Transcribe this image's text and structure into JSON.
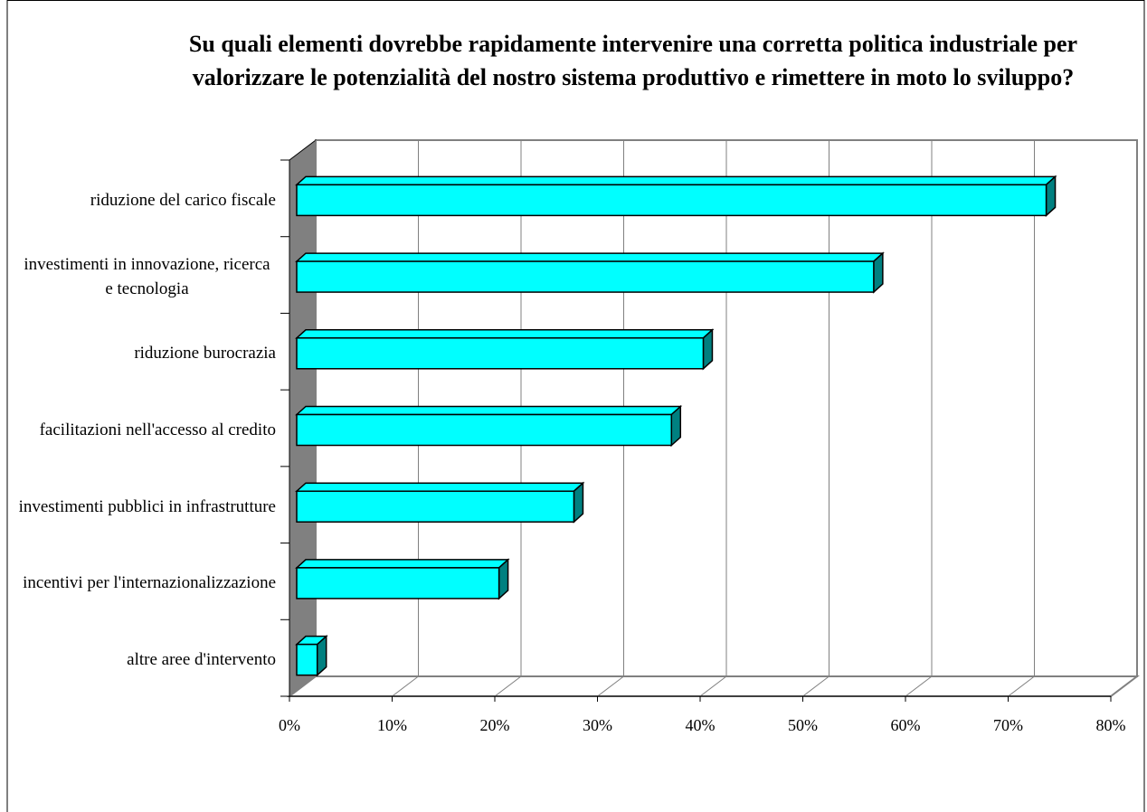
{
  "chart_data": {
    "type": "bar3d_horizontal",
    "title": "Su quali elementi dovrebbe rapidamente intervenire una corretta politica industriale per valorizzare le potenzialità del nostro sistema produttivo e rimettere in moto lo sviluppo?",
    "categories": [
      "riduzione del carico fiscale",
      "investimenti in innovazione, ricerca e tecnologia",
      "riduzione burocrazia",
      "facilitazioni nell'accesso al credito",
      "investimenti pubblici in infrastrutture",
      "incentivi per l'internazionalizzazione",
      "altre aree d'intervento"
    ],
    "values": [
      73,
      56.2,
      39.6,
      36.5,
      27,
      19.7,
      2
    ],
    "color": "#00ffff",
    "side_color": "#008080",
    "xlim": [
      0,
      80
    ],
    "xticks": [
      {
        "value": 0,
        "label": "0%"
      },
      {
        "value": 10,
        "label": "10%"
      },
      {
        "value": 20,
        "label": "20%"
      },
      {
        "value": 30,
        "label": "30%"
      },
      {
        "value": 40,
        "label": "40%"
      },
      {
        "value": 50,
        "label": "50%"
      },
      {
        "value": 60,
        "label": "60%"
      },
      {
        "value": 70,
        "label": "70%"
      },
      {
        "value": 80,
        "label": "80%"
      }
    ],
    "grid": true
  }
}
